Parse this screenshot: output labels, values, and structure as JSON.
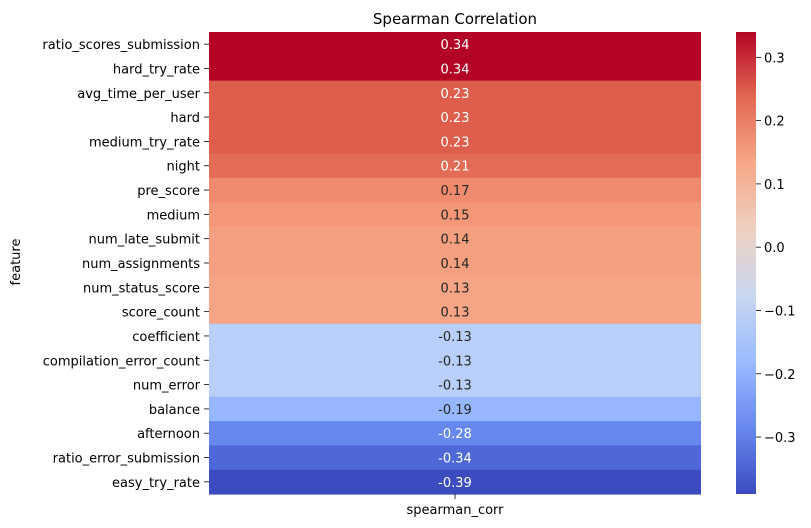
{
  "chart_data": {
    "type": "heatmap",
    "title": "Spearman Correlation",
    "xlabel": "",
    "ylabel": "feature",
    "column_label": "spearman_corr",
    "rows": [
      {
        "feature": "ratio_scores_submission",
        "value": 0.34,
        "label": "0.34",
        "color": "#b40426"
      },
      {
        "feature": "hard_try_rate",
        "value": 0.34,
        "label": "0.34",
        "color": "#b40426"
      },
      {
        "feature": "avg_time_per_user",
        "value": 0.23,
        "label": "0.23",
        "color": "#dd5f4b"
      },
      {
        "feature": "hard",
        "value": 0.23,
        "label": "0.23",
        "color": "#dd5f4b"
      },
      {
        "feature": "medium_try_rate",
        "value": 0.23,
        "label": "0.23",
        "color": "#dd5f4b"
      },
      {
        "feature": "night",
        "value": 0.21,
        "label": "0.21",
        "color": "#e36c55"
      },
      {
        "feature": "pre_score",
        "value": 0.17,
        "label": "0.17",
        "color": "#f08a6c"
      },
      {
        "feature": "medium",
        "value": 0.15,
        "label": "0.15",
        "color": "#f39777"
      },
      {
        "feature": "num_late_submit",
        "value": 0.14,
        "label": "0.14",
        "color": "#f4a080"
      },
      {
        "feature": "num_assignments",
        "value": 0.14,
        "label": "0.14",
        "color": "#f4a080"
      },
      {
        "feature": "num_status_score",
        "value": 0.13,
        "label": "0.13",
        "color": "#f5a585"
      },
      {
        "feature": "score_count",
        "value": 0.13,
        "label": "0.13",
        "color": "#f5a585"
      },
      {
        "feature": "coefficient",
        "value": -0.13,
        "label": "-0.13",
        "color": "#b7cff9"
      },
      {
        "feature": "compilation_error_count",
        "value": -0.13,
        "label": "-0.13",
        "color": "#b7cff9"
      },
      {
        "feature": "num_error",
        "value": -0.13,
        "label": "-0.13",
        "color": "#b7cff9"
      },
      {
        "feature": "balance",
        "value": -0.19,
        "label": "-0.19",
        "color": "#96b7ff"
      },
      {
        "feature": "afternoon",
        "value": -0.28,
        "label": "-0.28",
        "color": "#6788ee"
      },
      {
        "feature": "ratio_error_submission",
        "value": -0.34,
        "label": "-0.34",
        "color": "#4e68d8"
      },
      {
        "feature": "easy_try_rate",
        "value": -0.39,
        "label": "-0.39",
        "color": "#3b4cc0"
      }
    ],
    "colorbar": {
      "vmin": -0.39,
      "vmax": 0.34,
      "ticks": [
        0.3,
        0.2,
        0.1,
        0.0,
        -0.1,
        -0.2,
        -0.3
      ],
      "tick_labels": [
        "0.3",
        "0.2",
        "0.1",
        "0.0",
        "−0.1",
        "−0.2",
        "−0.3"
      ],
      "colormap": "coolwarm",
      "gradient_colors": [
        "#3b4cc0",
        "#6788ee",
        "#9abbff",
        "#c9d7f0",
        "#edd1c2",
        "#f7a889",
        "#e26952",
        "#b40426"
      ]
    },
    "grid": false
  }
}
